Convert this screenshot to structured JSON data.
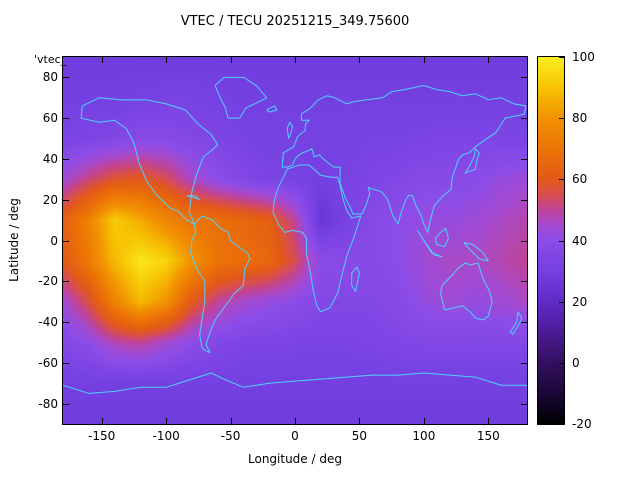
{
  "title": "VTEC / TECU 20251215_349.75600",
  "corner_label": "'vtec_",
  "axes": {
    "xlabel": "Longitude / deg",
    "ylabel": "Latitude / deg",
    "x_ticks": [
      -150,
      -100,
      -50,
      0,
      50,
      100,
      150
    ],
    "y_ticks": [
      -80,
      -60,
      -40,
      -20,
      0,
      20,
      40,
      60,
      80
    ],
    "x_range": [
      -180,
      180
    ],
    "y_range": [
      -90,
      90
    ]
  },
  "colorbar": {
    "ticks": [
      100,
      80,
      60,
      40,
      20,
      0,
      -20
    ],
    "range": [
      -20,
      100
    ]
  },
  "chart_data": {
    "type": "heatmap",
    "title": "VTEC / TECU 20251215_349.75600",
    "xlabel": "Longitude / deg",
    "ylabel": "Latitude / deg",
    "units": "TECU",
    "x_range": [
      -180,
      180
    ],
    "y_range": [
      -90,
      90
    ],
    "value_range": [
      -20,
      100
    ],
    "lon": [
      -180,
      -160,
      -140,
      -120,
      -100,
      -80,
      -60,
      -40,
      -20,
      0,
      20,
      40,
      60,
      80,
      100,
      120,
      140,
      160,
      180
    ],
    "lat": [
      90,
      70,
      50,
      30,
      10,
      -10,
      -30,
      -50,
      -70,
      -90
    ],
    "values": [
      [
        28,
        28,
        28,
        28,
        28,
        28,
        28,
        28,
        28,
        28,
        28,
        28,
        28,
        28,
        28,
        28,
        28,
        28,
        28
      ],
      [
        30,
        30,
        30,
        31,
        32,
        32,
        31,
        30,
        30,
        30,
        30,
        30,
        30,
        30,
        30,
        30,
        30,
        30,
        30
      ],
      [
        33,
        34,
        36,
        38,
        38,
        36,
        34,
        32,
        31,
        31,
        31,
        31,
        32,
        32,
        33,
        34,
        34,
        34,
        33
      ],
      [
        44,
        52,
        58,
        60,
        55,
        46,
        40,
        36,
        33,
        32,
        30,
        32,
        34,
        36,
        38,
        38,
        39,
        42,
        44
      ],
      [
        62,
        75,
        92,
        85,
        76,
        70,
        68,
        65,
        62,
        50,
        25,
        32,
        38,
        40,
        42,
        42,
        44,
        46,
        48
      ],
      [
        60,
        72,
        88,
        98,
        94,
        80,
        70,
        68,
        65,
        55,
        40,
        38,
        38,
        40,
        44,
        46,
        46,
        48,
        50
      ],
      [
        44,
        56,
        75,
        88,
        80,
        60,
        50,
        45,
        42,
        40,
        36,
        36,
        36,
        38,
        42,
        44,
        42,
        44,
        46
      ],
      [
        36,
        40,
        48,
        50,
        45,
        40,
        36,
        34,
        34,
        33,
        33,
        33,
        34,
        35,
        36,
        36,
        36,
        36,
        36
      ],
      [
        30,
        30,
        30,
        30,
        30,
        30,
        30,
        30,
        30,
        30,
        30,
        30,
        30,
        30,
        30,
        30,
        30,
        30,
        30
      ],
      [
        28,
        28,
        28,
        28,
        28,
        28,
        28,
        28,
        28,
        28,
        28,
        28,
        28,
        28,
        28,
        28,
        28,
        28,
        28
      ]
    ],
    "palette": [
      [
        -20,
        "#000000"
      ],
      [
        -10,
        "#1c0838"
      ],
      [
        0,
        "#331060"
      ],
      [
        10,
        "#4a1c96"
      ],
      [
        20,
        "#5f2cc8"
      ],
      [
        30,
        "#7440e2"
      ],
      [
        40,
        "#8c4ce8"
      ],
      [
        45,
        "#a44ad0"
      ],
      [
        50,
        "#c04498"
      ],
      [
        55,
        "#d84e50"
      ],
      [
        60,
        "#e25a18"
      ],
      [
        70,
        "#ec7406"
      ],
      [
        80,
        "#f29202"
      ],
      [
        90,
        "#f6c303"
      ],
      [
        100,
        "#fcee21"
      ]
    ],
    "coastline_color": "#4dd2ff",
    "coastlines": [
      [
        [
          -165,
          66
        ],
        [
          -166,
          60
        ],
        [
          -152,
          58
        ],
        [
          -140,
          59
        ],
        [
          -131,
          55
        ],
        [
          -125,
          48
        ],
        [
          -121,
          38
        ],
        [
          -115,
          29
        ],
        [
          -107,
          22
        ],
        [
          -97,
          16
        ],
        [
          -90,
          14
        ],
        [
          -84,
          10
        ],
        [
          -78,
          8
        ],
        [
          -82,
          14
        ],
        [
          -80,
          24
        ],
        [
          -76,
          33
        ],
        [
          -71,
          41
        ],
        [
          -65,
          44
        ],
        [
          -60,
          47
        ],
        [
          -65,
          52
        ],
        [
          -75,
          57
        ],
        [
          -85,
          64
        ],
        [
          -100,
          67
        ],
        [
          -115,
          69
        ],
        [
          -135,
          69
        ],
        [
          -152,
          70
        ],
        [
          -165,
          66
        ]
      ],
      [
        [
          -52,
          60
        ],
        [
          -43,
          60
        ],
        [
          -38,
          65
        ],
        [
          -28,
          68
        ],
        [
          -22,
          70
        ],
        [
          -30,
          76
        ],
        [
          -40,
          80
        ],
        [
          -55,
          80
        ],
        [
          -62,
          76
        ],
        [
          -58,
          70
        ],
        [
          -54,
          65
        ],
        [
          -52,
          60
        ]
      ],
      [
        [
          -78,
          8
        ],
        [
          -72,
          12
        ],
        [
          -64,
          10
        ],
        [
          -58,
          6
        ],
        [
          -52,
          4
        ],
        [
          -50,
          0
        ],
        [
          -44,
          -3
        ],
        [
          -37,
          -6
        ],
        [
          -35,
          -9
        ],
        [
          -39,
          -14
        ],
        [
          -40,
          -22
        ],
        [
          -47,
          -26
        ],
        [
          -54,
          -32
        ],
        [
          -62,
          -39
        ],
        [
          -66,
          -45
        ],
        [
          -69,
          -51
        ],
        [
          -66,
          -55
        ],
        [
          -72,
          -53
        ],
        [
          -74,
          -46
        ],
        [
          -72,
          -38
        ],
        [
          -70,
          -30
        ],
        [
          -70,
          -20
        ],
        [
          -76,
          -14
        ],
        [
          -81,
          -6
        ],
        [
          -80,
          0
        ],
        [
          -77,
          4
        ],
        [
          -78,
          8
        ]
      ],
      [
        [
          -6,
          35
        ],
        [
          3,
          37
        ],
        [
          11,
          37
        ],
        [
          20,
          32
        ],
        [
          28,
          31
        ],
        [
          33,
          31
        ],
        [
          35,
          27
        ],
        [
          37,
          21
        ],
        [
          40,
          15
        ],
        [
          44,
          11
        ],
        [
          51,
          12
        ],
        [
          46,
          2
        ],
        [
          40,
          -8
        ],
        [
          36,
          -18
        ],
        [
          33,
          -26
        ],
        [
          27,
          -33
        ],
        [
          20,
          -35
        ],
        [
          17,
          -32
        ],
        [
          14,
          -24
        ],
        [
          12,
          -16
        ],
        [
          9,
          -7
        ],
        [
          9,
          1
        ],
        [
          6,
          4
        ],
        [
          -2,
          5
        ],
        [
          -8,
          4
        ],
        [
          -13,
          8
        ],
        [
          -17,
          14
        ],
        [
          -16,
          20
        ],
        [
          -13,
          26
        ],
        [
          -9,
          31
        ],
        [
          -6,
          35
        ]
      ],
      [
        [
          -10,
          36
        ],
        [
          -9,
          43
        ],
        [
          -1,
          46
        ],
        [
          2,
          51
        ],
        [
          8,
          54
        ],
        [
          8,
          57
        ],
        [
          11,
          59
        ],
        [
          5,
          59
        ],
        [
          5,
          62
        ],
        [
          12,
          65
        ],
        [
          18,
          69
        ],
        [
          25,
          71
        ],
        [
          31,
          70
        ],
        [
          40,
          67
        ],
        [
          45,
          68
        ],
        [
          55,
          69
        ],
        [
          68,
          70
        ],
        [
          75,
          73
        ],
        [
          85,
          74
        ],
        [
          100,
          76
        ],
        [
          110,
          74
        ],
        [
          120,
          73
        ],
        [
          130,
          71
        ],
        [
          140,
          72
        ],
        [
          150,
          69
        ],
        [
          160,
          70
        ],
        [
          170,
          67
        ],
        [
          179,
          66
        ],
        [
          178,
          62
        ],
        [
          163,
          60
        ],
        [
          156,
          53
        ],
        [
          142,
          47
        ],
        [
          135,
          43
        ],
        [
          130,
          42
        ],
        [
          127,
          40
        ],
        [
          122,
          31
        ],
        [
          121,
          25
        ],
        [
          115,
          22
        ],
        [
          108,
          17
        ],
        [
          105,
          10
        ],
        [
          103,
          4
        ],
        [
          100,
          8
        ],
        [
          98,
          12
        ],
        [
          94,
          17
        ],
        [
          91,
          22
        ],
        [
          88,
          22
        ],
        [
          86,
          20
        ],
        [
          82,
          13
        ],
        [
          80,
          8
        ],
        [
          76,
          12
        ],
        [
          72,
          20
        ],
        [
          67,
          24
        ],
        [
          61,
          25
        ],
        [
          57,
          26
        ],
        [
          58,
          23
        ],
        [
          55,
          17
        ],
        [
          52,
          13
        ],
        [
          45,
          13
        ],
        [
          43,
          16
        ],
        [
          39,
          21
        ],
        [
          35,
          28
        ],
        [
          35,
          36
        ],
        [
          30,
          36
        ],
        [
          26,
          38
        ],
        [
          22,
          40
        ],
        [
          19,
          42
        ],
        [
          15,
          41
        ],
        [
          13,
          45
        ],
        [
          10,
          44
        ],
        [
          6,
          43
        ],
        [
          3,
          42
        ],
        [
          0,
          40
        ],
        [
          -2,
          37
        ],
        [
          -6,
          36
        ],
        [
          -10,
          36
        ]
      ],
      [
        [
          114,
          -22
        ],
        [
          113,
          -26
        ],
        [
          116,
          -34
        ],
        [
          124,
          -33
        ],
        [
          130,
          -32
        ],
        [
          136,
          -35
        ],
        [
          140,
          -38
        ],
        [
          146,
          -39
        ],
        [
          150,
          -37
        ],
        [
          153,
          -30
        ],
        [
          151,
          -25
        ],
        [
          146,
          -19
        ],
        [
          142,
          -11
        ],
        [
          136,
          -12
        ],
        [
          132,
          -11
        ],
        [
          126,
          -14
        ],
        [
          122,
          -17
        ],
        [
          114,
          -22
        ]
      ],
      [
        [
          -180,
          -71
        ],
        [
          -160,
          -75
        ],
        [
          -140,
          -74
        ],
        [
          -120,
          -72
        ],
        [
          -100,
          -72
        ],
        [
          -80,
          -68
        ],
        [
          -65,
          -65
        ],
        [
          -55,
          -68
        ],
        [
          -40,
          -72
        ],
        [
          -20,
          -70
        ],
        [
          0,
          -69
        ],
        [
          20,
          -68
        ],
        [
          40,
          -67
        ],
        [
          60,
          -66
        ],
        [
          80,
          -66
        ],
        [
          100,
          -65
        ],
        [
          120,
          -66
        ],
        [
          140,
          -67
        ],
        [
          160,
          -71
        ],
        [
          180,
          -71
        ]
      ],
      [
        [
          -5,
          50
        ],
        [
          -3,
          53
        ],
        [
          -2,
          56
        ],
        [
          -4,
          58
        ],
        [
          -6,
          55
        ],
        [
          -5,
          50
        ]
      ],
      [
        [
          -22,
          64
        ],
        [
          -16,
          66
        ],
        [
          -14,
          64
        ],
        [
          -20,
          63
        ],
        [
          -22,
          64
        ]
      ],
      [
        [
          140,
          45
        ],
        [
          143,
          43
        ],
        [
          141,
          39
        ],
        [
          140,
          35
        ],
        [
          136,
          34
        ],
        [
          132,
          33
        ],
        [
          135,
          36
        ],
        [
          139,
          41
        ],
        [
          140,
          45
        ]
      ],
      [
        [
          109,
          1
        ],
        [
          113,
          4
        ],
        [
          117,
          6
        ],
        [
          119,
          1
        ],
        [
          116,
          -3
        ],
        [
          110,
          -2
        ],
        [
          109,
          1
        ]
      ],
      [
        [
          95,
          5
        ],
        [
          102,
          -2
        ],
        [
          106,
          -6
        ],
        [
          114,
          -8
        ],
        [
          108,
          -7
        ],
        [
          100,
          0
        ],
        [
          95,
          5
        ]
      ],
      [
        [
          131,
          -1
        ],
        [
          138,
          -2
        ],
        [
          146,
          -6
        ],
        [
          150,
          -10
        ],
        [
          143,
          -9
        ],
        [
          135,
          -4
        ],
        [
          131,
          -1
        ]
      ],
      [
        [
          44,
          -16
        ],
        [
          48,
          -13
        ],
        [
          50,
          -16
        ],
        [
          47,
          -25
        ],
        [
          44,
          -22
        ],
        [
          44,
          -16
        ]
      ],
      [
        [
          173,
          -35
        ],
        [
          176,
          -38
        ],
        [
          174,
          -41
        ],
        [
          169,
          -46
        ],
        [
          167,
          -45
        ],
        [
          172,
          -40
        ],
        [
          173,
          -35
        ]
      ],
      [
        [
          -84,
          22
        ],
        [
          -78,
          21
        ],
        [
          -74,
          20
        ],
        [
          -78,
          22
        ],
        [
          -84,
          22
        ]
      ]
    ]
  }
}
